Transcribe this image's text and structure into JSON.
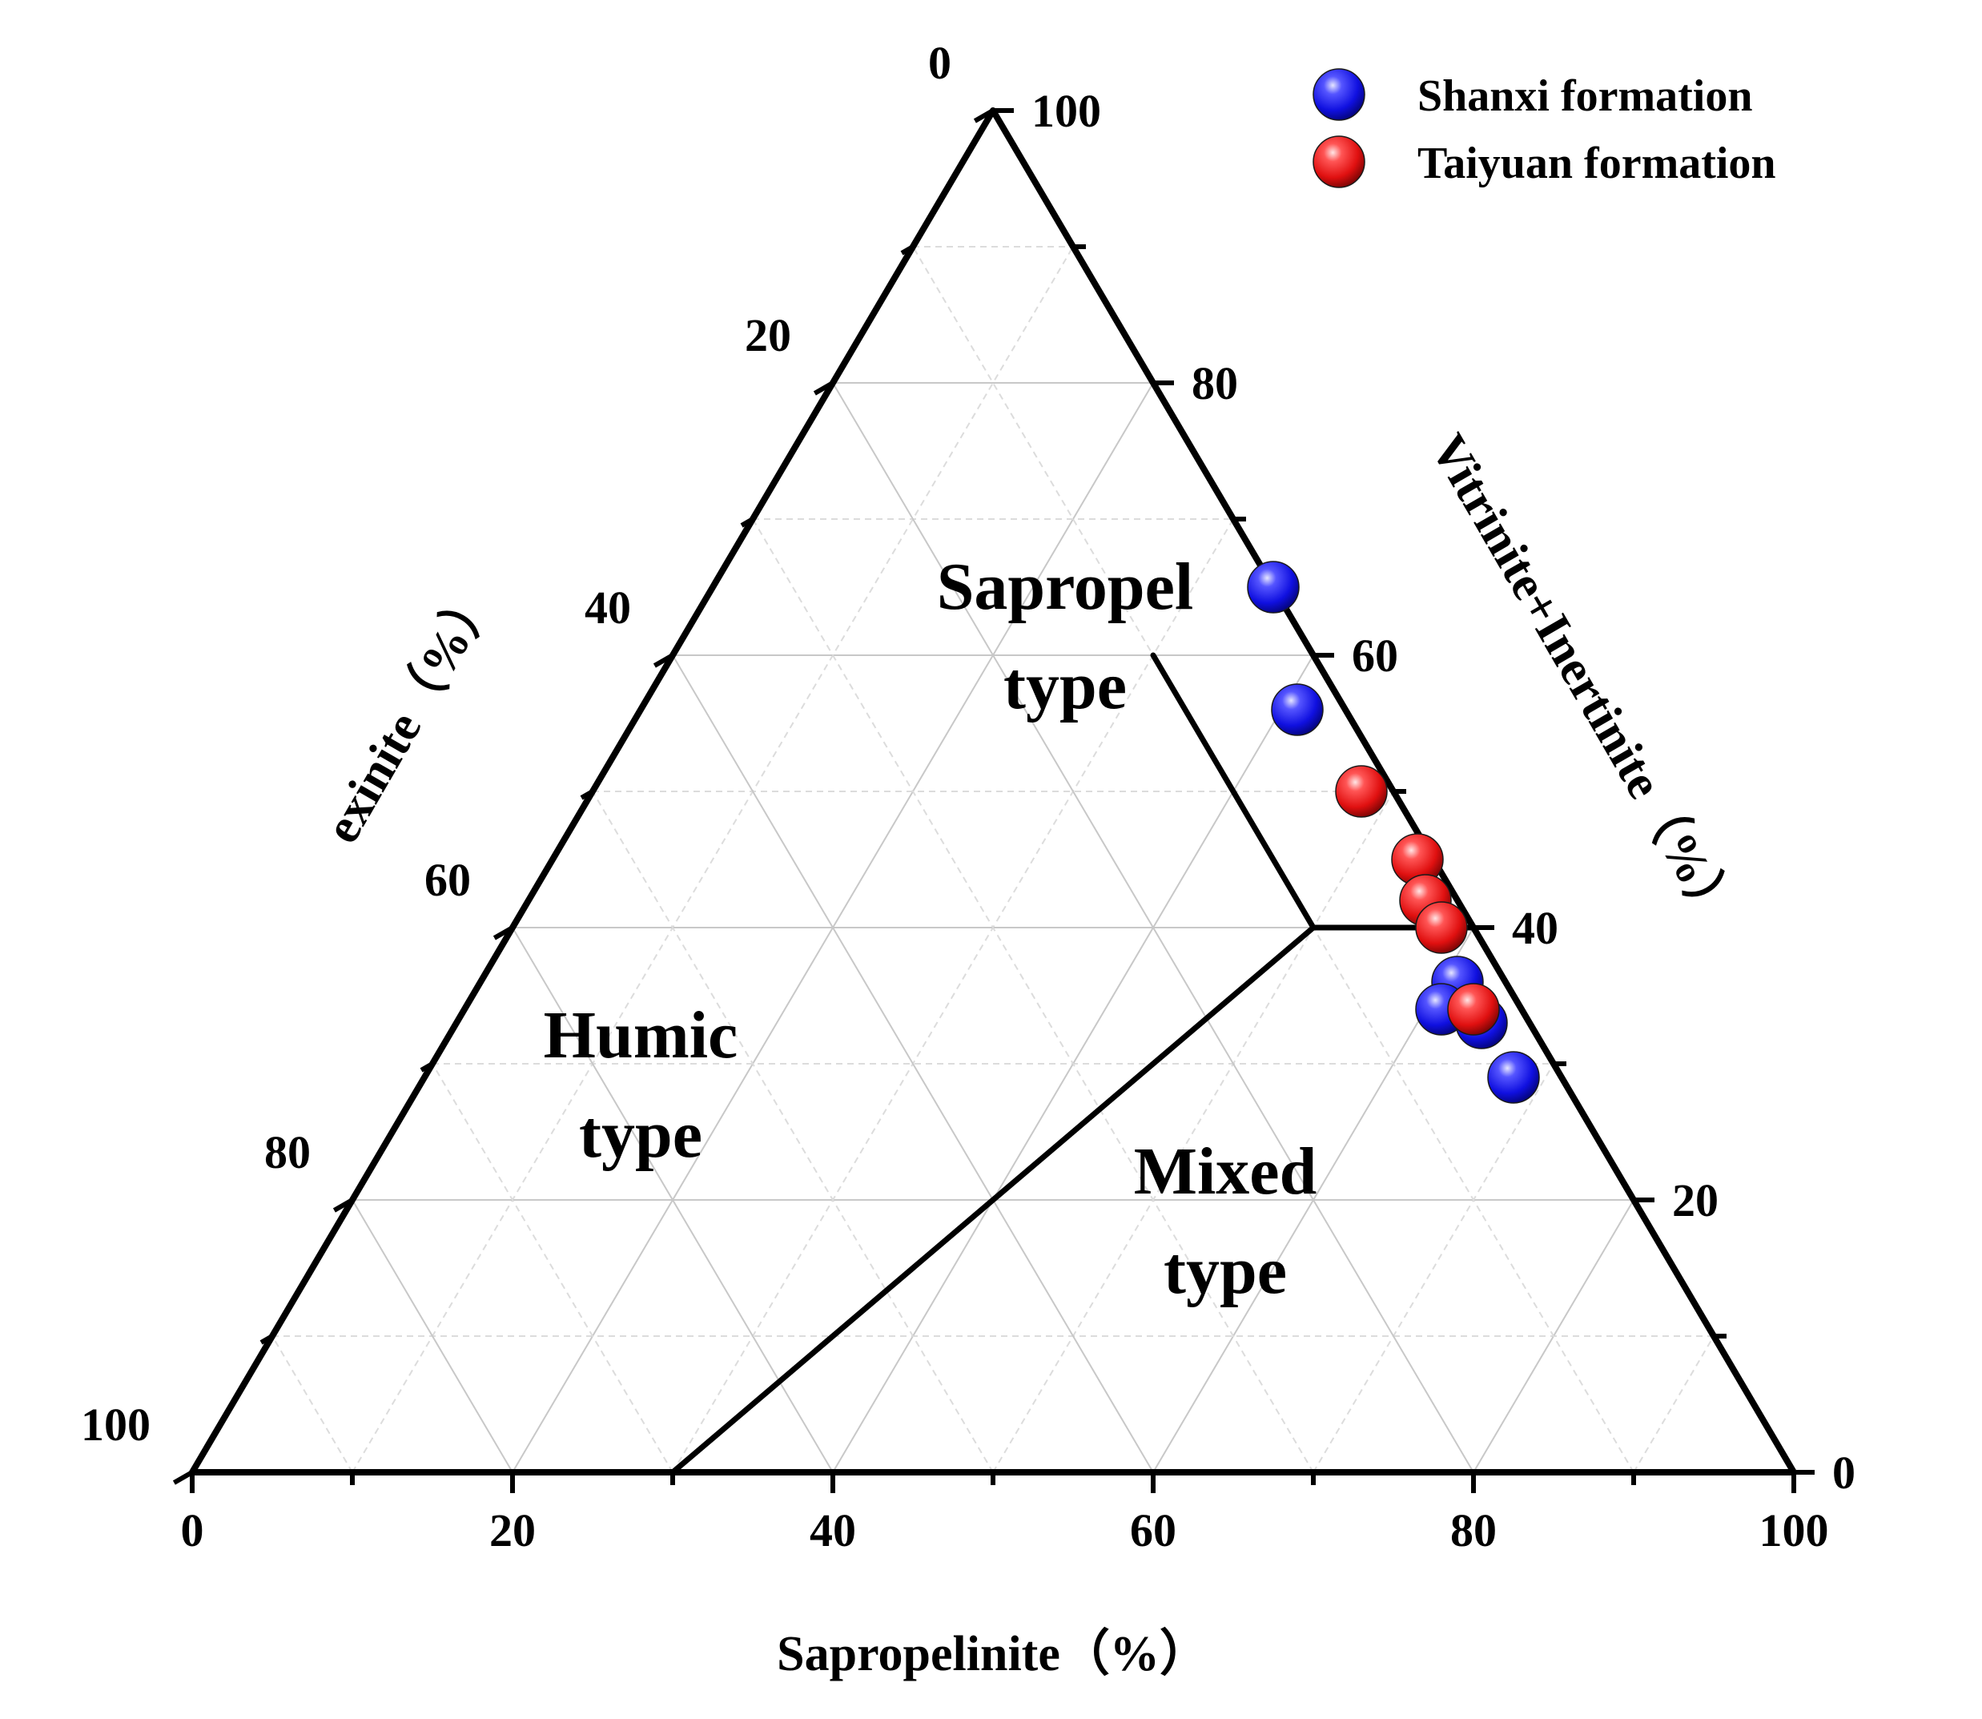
{
  "chart_data": {
    "type": "scatter",
    "subtype": "ternary",
    "axes": {
      "bottom": {
        "label": "Sapropelinite（%）",
        "ticks": [
          "0",
          "20",
          "40",
          "60",
          "80",
          "100"
        ],
        "range": [
          0,
          100
        ]
      },
      "left": {
        "label": "exinite（%）",
        "ticks": [
          "0",
          "20",
          "40",
          "60",
          "80",
          "100"
        ],
        "range": [
          0,
          100
        ]
      },
      "right": {
        "label": "Vitrinite+Inertinite（%）",
        "ticks": [
          "0",
          "20",
          "40",
          "60",
          "80",
          "100"
        ],
        "range": [
          0,
          100
        ]
      }
    },
    "grid": true,
    "legend_position": "top-right",
    "colors": {
      "Shanxi formation": "#1f1fff",
      "Taiyuan formation": "#ff1f1f"
    },
    "regions": [
      {
        "label": "Sapropel\ntype"
      },
      {
        "label": "Humic\ntype"
      },
      {
        "label": "Mixed\ntype"
      }
    ],
    "boundaries": [
      {
        "from": {
          "sapropelinite": 30,
          "vitrinite_inertinite": 60
        },
        "to": {
          "sapropelinite": 50,
          "vitrinite_inertinite": 40
        }
      },
      {
        "from": {
          "sapropelinite": 50,
          "vitrinite_inertinite": 40
        },
        "to": {
          "sapropelinite": 60,
          "vitrinite_inertinite": 40
        }
      },
      {
        "from": {
          "sapropelinite": 50,
          "vitrinite_inertinite": 40
        },
        "to": {
          "sapropelinite": 30,
          "vitrinite_inertinite": 0
        }
      }
    ],
    "series": [
      {
        "name": "Shanxi formation",
        "points": [
          {
            "sapropelinite": 35,
            "vitrinite_inertinite": 65,
            "exinite": 0
          },
          {
            "sapropelinite": 41,
            "vitrinite_inertinite": 56,
            "exinite": 3
          },
          {
            "sapropelinite": 61,
            "vitrinite_inertinite": 36,
            "exinite": 3
          },
          {
            "sapropelinite": 61,
            "vitrinite_inertinite": 34,
            "exinite": 5
          },
          {
            "sapropelinite": 64,
            "vitrinite_inertinite": 33,
            "exinite": 3
          },
          {
            "sapropelinite": 68,
            "vitrinite_inertinite": 29,
            "exinite": 3
          }
        ]
      },
      {
        "name": "Taiyuan formation",
        "points": [
          {
            "sapropelinite": 48,
            "vitrinite_inertinite": 50,
            "exinite": 2
          },
          {
            "sapropelinite": 54,
            "vitrinite_inertinite": 45,
            "exinite": 1
          },
          {
            "sapropelinite": 56,
            "vitrinite_inertinite": 42,
            "exinite": 2
          },
          {
            "sapropelinite": 58,
            "vitrinite_inertinite": 40,
            "exinite": 2
          },
          {
            "sapropelinite": 63,
            "vitrinite_inertinite": 34,
            "exinite": 3
          }
        ]
      }
    ]
  }
}
